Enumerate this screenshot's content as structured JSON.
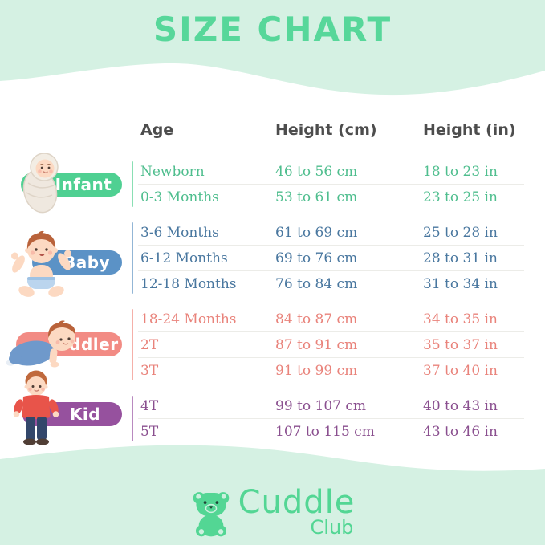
{
  "title": "SIZE CHART",
  "chart_data": {
    "type": "table",
    "title": "SIZE CHART",
    "columns": [
      "Age",
      "Height (cm)",
      "Height (in)"
    ],
    "groups": [
      {
        "id": "infant",
        "label": "Infant",
        "rows": [
          [
            "Newborn",
            "46 to 56 cm",
            "18 to 23 in"
          ],
          [
            "0-3 Months",
            "53 to 61 cm",
            "23 to 25 in"
          ]
        ]
      },
      {
        "id": "baby",
        "label": "Baby",
        "rows": [
          [
            "3-6 Months",
            "61 to 69 cm",
            "25 to 28 in"
          ],
          [
            "6-12 Months",
            "69 to 76 cm",
            "28 to 31 in"
          ],
          [
            "12-18 Months",
            "76 to 84 cm",
            "31 to 34 in"
          ]
        ]
      },
      {
        "id": "toddler",
        "label": "Toddler",
        "rows": [
          [
            "18-24 Months",
            "84 to 87 cm",
            "34 to 35 in"
          ],
          [
            "2T",
            "87 to 91 cm",
            "35 to 37 in"
          ],
          [
            "3T",
            "91 to 99 cm",
            "37 to 40 in"
          ]
        ]
      },
      {
        "id": "kid",
        "label": "Kid",
        "rows": [
          [
            "4T",
            "99 to 107 cm",
            "40 to 43 in"
          ],
          [
            "5T",
            "107 to 115 cm",
            "43 to 46 in"
          ]
        ]
      }
    ]
  },
  "style": {
    "groups": [
      {
        "id": "infant",
        "pill_color": "#4FD092",
        "text_color": "#4FBE8E",
        "line_color": "#8ADFB4"
      },
      {
        "id": "baby",
        "pill_color": "#5B92C6",
        "text_color": "#49779F",
        "line_color": "#93B6D6"
      },
      {
        "id": "toddler",
        "pill_color": "#F28B84",
        "text_color": "#E9837B",
        "line_color": "#F5B0A9"
      },
      {
        "id": "kid",
        "pill_color": "#96519E",
        "text_color": "#8A4F8F",
        "line_color": "#B98AC0"
      }
    ]
  },
  "colors": {
    "background_mint": "#D5F1E3",
    "title_green": "#57D79A",
    "header_text": "#4D4D4D",
    "brand_green": "#53D694",
    "row_divider": "#ECECE8"
  },
  "icons": {
    "infant": "swaddled-infant-illustration",
    "baby": "sitting-baby-illustration",
    "toddler": "crawling-toddler-illustration",
    "kid": "standing-kid-illustration",
    "brand": "teddy-bear-icon"
  },
  "footer": {
    "brand": "Cuddle",
    "brand_sub": "Club"
  }
}
